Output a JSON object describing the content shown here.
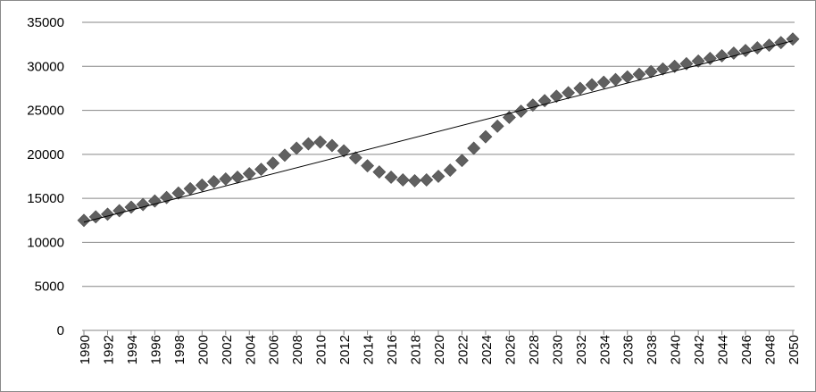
{
  "chart_data": {
    "type": "scatter",
    "title": "",
    "xlabel": "",
    "ylabel": "",
    "ylim": [
      0,
      35000
    ],
    "yticks": [
      0,
      5000,
      10000,
      15000,
      20000,
      25000,
      30000,
      35000
    ],
    "xtick_labels": [
      "1990",
      "1992",
      "1994",
      "1996",
      "1998",
      "2000",
      "2002",
      "2004",
      "2006",
      "2008",
      "2010",
      "2012",
      "2014",
      "2016",
      "2018",
      "2020",
      "2022",
      "2024",
      "2026",
      "2028",
      "2030",
      "2032",
      "2034",
      "2036",
      "2038",
      "2040",
      "2042",
      "2044",
      "2046",
      "2048",
      "2050"
    ],
    "grid": "horizontal",
    "legend": "none",
    "series": [
      {
        "marker": "diamond",
        "color": "#606060",
        "x": [
          1990,
          1991,
          1992,
          1993,
          1994,
          1995,
          1996,
          1997,
          1998,
          1999,
          2000,
          2001,
          2002,
          2003,
          2004,
          2005,
          2006,
          2007,
          2008,
          2009,
          2010,
          2011,
          2012,
          2013,
          2014,
          2015,
          2016,
          2017,
          2018,
          2019,
          2020,
          2021,
          2022,
          2023,
          2024,
          2025,
          2026,
          2027,
          2028,
          2029,
          2030,
          2031,
          2032,
          2033,
          2034,
          2035,
          2036,
          2037,
          2038,
          2039,
          2040,
          2041,
          2042,
          2043,
          2044,
          2045,
          2046,
          2047,
          2048,
          2049,
          2050
        ],
        "values": [
          12500,
          12900,
          13200,
          13600,
          14000,
          14300,
          14700,
          15100,
          15600,
          16100,
          16500,
          16900,
          17200,
          17400,
          17800,
          18300,
          19000,
          19900,
          20700,
          21200,
          21400,
          21000,
          20400,
          19600,
          18700,
          18000,
          17400,
          17100,
          17000,
          17100,
          17500,
          18200,
          19300,
          20700,
          22000,
          23200,
          24200,
          24900,
          25600,
          26100,
          26600,
          27000,
          27500,
          27900,
          28200,
          28500,
          28800,
          29100,
          29400,
          29700,
          30000,
          30300,
          30600,
          30900,
          31200,
          31500,
          31800,
          32100,
          32400,
          32700,
          33100
        ]
      }
    ],
    "trendline": {
      "type": "linear",
      "color": "#000000",
      "start": [
        1990,
        12300
      ],
      "end": [
        2050,
        32900
      ]
    }
  }
}
